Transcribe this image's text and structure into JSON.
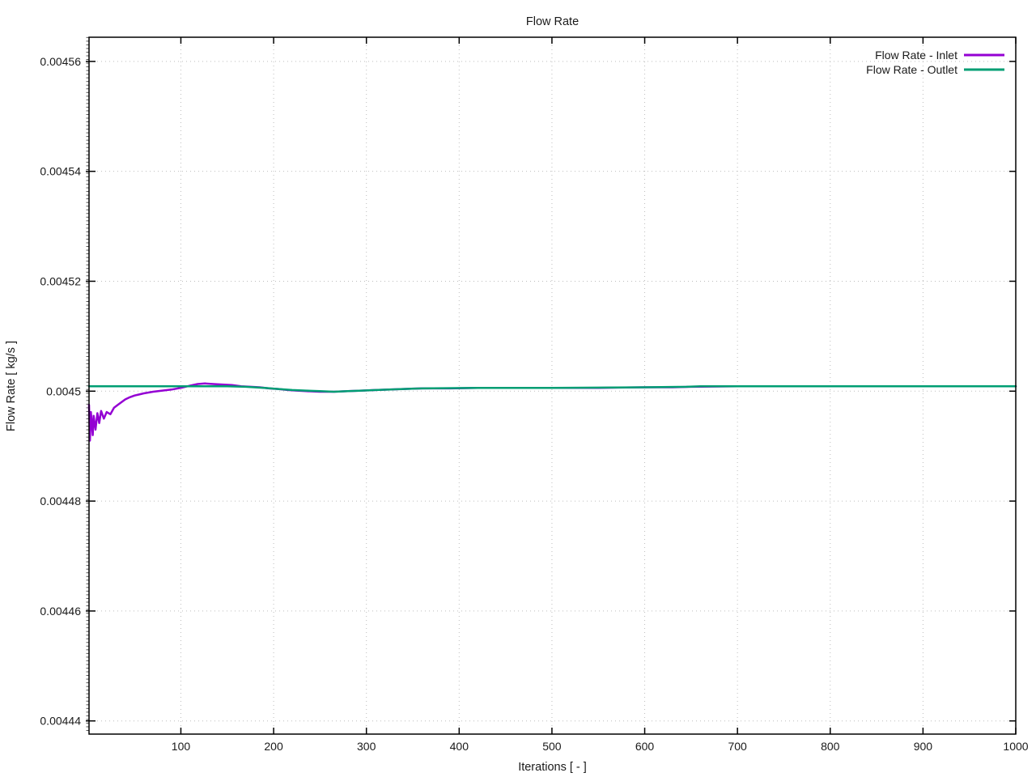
{
  "chart_data": {
    "type": "line",
    "title": "Flow Rate",
    "xlabel": "Iterations [ - ]",
    "ylabel": "Flow Rate [ kg/s ]",
    "xlim": [
      1,
      1000
    ],
    "ylim": [
      0.0044376,
      0.0045644
    ],
    "xticks": [
      100,
      200,
      300,
      400,
      500,
      600,
      700,
      800,
      900,
      1000
    ],
    "xtick_labels": [
      "100",
      "200",
      "300",
      "400",
      "500",
      "600",
      "700",
      "800",
      "900",
      "1000"
    ],
    "yticks": [
      0.00444,
      0.00446,
      0.00448,
      0.0045,
      0.00452,
      0.00454,
      0.00456
    ],
    "ytick_labels": [
      "0.00444",
      "0.00446",
      "0.00448",
      "0.0045",
      "0.00452",
      "0.00454",
      "0.00456"
    ],
    "grid": true,
    "grid_style": "dotted",
    "legend_position": "top-right-inside",
    "colors": {
      "inlet": "#9400d3",
      "outlet": "#009e73",
      "grid": "#bdbdbd",
      "axis": "#000000",
      "text": "#1a1a1a"
    },
    "series": [
      {
        "name": "Flow Rate - Inlet",
        "color_key": "inlet",
        "points": [
          [
            1,
            0.0044975
          ],
          [
            2,
            0.004491
          ],
          [
            3,
            0.0044962
          ],
          [
            5,
            0.004492
          ],
          [
            6,
            0.0044955
          ],
          [
            8,
            0.004493
          ],
          [
            10,
            0.004496
          ],
          [
            12,
            0.0044942
          ],
          [
            14,
            0.0044964
          ],
          [
            17,
            0.004495
          ],
          [
            20,
            0.0044962
          ],
          [
            24,
            0.0044958
          ],
          [
            28,
            0.004497
          ],
          [
            32,
            0.0044975
          ],
          [
            36,
            0.004498
          ],
          [
            40,
            0.0044985
          ],
          [
            45,
            0.0044989
          ],
          [
            50,
            0.0044992
          ],
          [
            55,
            0.0044994
          ],
          [
            60,
            0.0044996
          ],
          [
            70,
            0.0044999
          ],
          [
            80,
            0.0045001
          ],
          [
            90,
            0.0045003
          ],
          [
            100,
            0.0045006
          ],
          [
            110,
            0.004501
          ],
          [
            118,
            0.0045013
          ],
          [
            126,
            0.0045014
          ],
          [
            135,
            0.0045013
          ],
          [
            145,
            0.0045012
          ],
          [
            155,
            0.0045011
          ],
          [
            165,
            0.0045009
          ],
          [
            175,
            0.0045008
          ],
          [
            185,
            0.0045007
          ],
          [
            195,
            0.0045005
          ],
          [
            205,
            0.0045004
          ],
          [
            215,
            0.0045002
          ],
          [
            225,
            0.0045001
          ],
          [
            235,
            0.0045
          ],
          [
            250,
            0.0044999
          ],
          [
            265,
            0.0044999
          ],
          [
            280,
            0.0045
          ],
          [
            295,
            0.0045001
          ],
          [
            310,
            0.0045002
          ],
          [
            325,
            0.0045003
          ],
          [
            340,
            0.0045004
          ],
          [
            360,
            0.0045005
          ],
          [
            390,
            0.0045005
          ],
          [
            420,
            0.0045006
          ],
          [
            460,
            0.0045006
          ],
          [
            500,
            0.0045006
          ],
          [
            550,
            0.0045006
          ],
          [
            600,
            0.0045007
          ],
          [
            630,
            0.0045007
          ],
          [
            650,
            0.0045008
          ],
          [
            700,
            0.0045009
          ],
          [
            750,
            0.0045009
          ],
          [
            800,
            0.0045009
          ],
          [
            850,
            0.0045009
          ],
          [
            900,
            0.0045009
          ],
          [
            950,
            0.0045009
          ],
          [
            1000,
            0.0045009
          ]
        ]
      },
      {
        "name": "Flow Rate - Outlet",
        "color_key": "outlet",
        "points": [
          [
            1,
            0.0045009
          ],
          [
            50,
            0.0045009
          ],
          [
            100,
            0.0045009
          ],
          [
            150,
            0.0045009
          ],
          [
            170,
            0.0045008
          ],
          [
            190,
            0.0045006
          ],
          [
            205,
            0.0045004
          ],
          [
            220,
            0.0045002
          ],
          [
            235,
            0.0045001
          ],
          [
            250,
            0.0045
          ],
          [
            265,
            0.0044999
          ],
          [
            280,
            0.0045
          ],
          [
            295,
            0.0045001
          ],
          [
            310,
            0.0045002
          ],
          [
            325,
            0.0045003
          ],
          [
            340,
            0.0045004
          ],
          [
            360,
            0.0045005
          ],
          [
            420,
            0.0045006
          ],
          [
            500,
            0.0045006
          ],
          [
            600,
            0.0045007
          ],
          [
            645,
            0.0045008
          ],
          [
            660,
            0.0045009
          ],
          [
            700,
            0.0045009
          ],
          [
            800,
            0.0045009
          ],
          [
            900,
            0.0045009
          ],
          [
            1000,
            0.0045009
          ]
        ]
      }
    ]
  }
}
